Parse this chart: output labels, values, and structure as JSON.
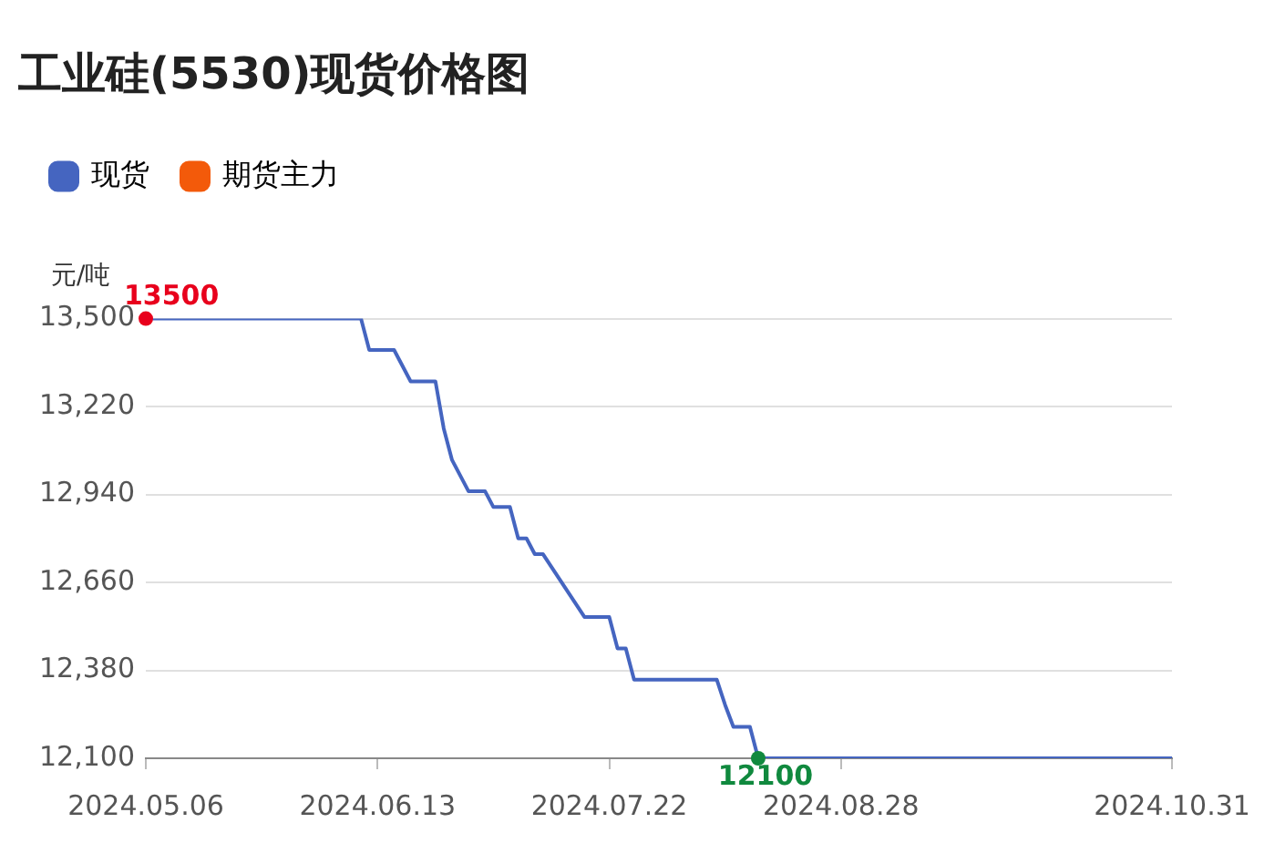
{
  "chart_data": {
    "type": "line",
    "title": "工业硅(5530)现货价格图",
    "ylabel": "元/吨",
    "categories": [
      "2024.05.06",
      null,
      null,
      null,
      null,
      null,
      null,
      null,
      null,
      null,
      null,
      null,
      null,
      null,
      null,
      null,
      null,
      null,
      null,
      null,
      null,
      null,
      null,
      null,
      null,
      null,
      null,
      null,
      "2024.06.13",
      null,
      null,
      null,
      null,
      null,
      null,
      null,
      null,
      null,
      null,
      null,
      null,
      null,
      null,
      null,
      null,
      null,
      null,
      null,
      null,
      null,
      null,
      null,
      null,
      null,
      null,
      null,
      "2024.07.22",
      null,
      null,
      null,
      null,
      null,
      null,
      null,
      null,
      null,
      null,
      null,
      null,
      null,
      null,
      null,
      null,
      null,
      null,
      null,
      null,
      null,
      null,
      null,
      null,
      null,
      null,
      null,
      "2024.08.28",
      null,
      null,
      null,
      null,
      null,
      null,
      null,
      null,
      null,
      null,
      null,
      null,
      null,
      null,
      null,
      null,
      null,
      null,
      null,
      null,
      null,
      null,
      null,
      null,
      null,
      null,
      null,
      null,
      null,
      null,
      null,
      null,
      null,
      null,
      null,
      null,
      null,
      null,
      null,
      "2024.10.31"
    ],
    "series": [
      {
        "name": "现货",
        "color": "#4565c0",
        "values": [
          13500,
          13500,
          13500,
          13500,
          13500,
          13500,
          13500,
          13500,
          13500,
          13500,
          13500,
          13500,
          13500,
          13500,
          13500,
          13500,
          13500,
          13500,
          13500,
          13500,
          13500,
          13500,
          13500,
          13500,
          13500,
          13500,
          13500,
          13400,
          13400,
          13400,
          13400,
          13350,
          13300,
          13300,
          13300,
          13300,
          13150,
          13050,
          13000,
          12950,
          12950,
          12950,
          12900,
          12900,
          12900,
          12800,
          12800,
          12750,
          12750,
          12710,
          12670,
          12630,
          12590,
          12550,
          12550,
          12550,
          12550,
          12450,
          12450,
          12350,
          12350,
          12350,
          12350,
          12350,
          12350,
          12350,
          12350,
          12350,
          12350,
          12350,
          12270,
          12200,
          12200,
          12200,
          12100,
          12100,
          12100,
          12100,
          12100,
          12100,
          12100,
          12100,
          12100,
          12100,
          12100,
          12100,
          12100,
          12100,
          12100,
          12100,
          12100,
          12100,
          12100,
          12100,
          12100,
          12100,
          12100,
          12100,
          12100,
          12100,
          12100,
          12100,
          12100,
          12100,
          12100,
          12100,
          12100,
          12100,
          12100,
          12100,
          12100,
          12100,
          12100,
          12100,
          12100,
          12100,
          12100,
          12100,
          12100,
          12100,
          12100,
          12100,
          12100,
          12100,
          12100
        ],
        "value_labels": [
          "13500",
          null,
          null,
          null,
          null,
          null,
          null,
          null,
          null,
          null,
          null,
          null,
          null,
          null,
          null,
          null,
          null,
          null,
          null,
          null,
          null,
          null,
          null,
          null,
          null,
          null,
          null,
          null,
          null,
          null,
          null,
          null,
          null,
          null,
          null,
          null,
          null,
          null,
          null,
          null,
          null,
          null,
          null,
          null,
          null,
          null,
          null,
          null,
          null,
          null,
          null,
          null,
          null,
          null,
          null,
          null,
          null,
          null,
          null,
          null,
          null,
          null,
          null,
          null,
          null,
          null,
          null,
          null,
          null,
          null,
          null,
          null,
          null,
          null,
          "12100",
          null,
          null,
          null,
          null,
          null,
          null,
          null,
          null,
          null,
          null,
          null,
          null,
          null,
          null,
          null,
          null,
          null,
          null,
          null,
          null,
          null,
          null,
          null,
          null,
          null,
          null,
          null,
          null,
          null,
          null,
          null,
          null,
          null,
          null,
          null,
          null,
          null,
          null,
          null,
          null,
          null,
          null,
          null,
          null,
          null,
          null,
          null,
          null,
          null,
          null
        ]
      },
      {
        "name": "期货主力",
        "color": "#f35a0a",
        "values": [
          null,
          null,
          null,
          null,
          null,
          null,
          null,
          null,
          null,
          null,
          null,
          null,
          null,
          null,
          null,
          null,
          null,
          null,
          null,
          null,
          null,
          null,
          null,
          null,
          null,
          null,
          null,
          null,
          null,
          null,
          null,
          null,
          null,
          null,
          null,
          null,
          null,
          null,
          null,
          null,
          null,
          null,
          null,
          null,
          null,
          null,
          null,
          null,
          null,
          null,
          null,
          null,
          null,
          null,
          null,
          null,
          null,
          null,
          null,
          null,
          null,
          null,
          null,
          null,
          null,
          null,
          null,
          null,
          null,
          null,
          null,
          null,
          null,
          null,
          null,
          null,
          null,
          null,
          null,
          null,
          null,
          null,
          null,
          null,
          null,
          null,
          null,
          null,
          null,
          null,
          null,
          null,
          null,
          null,
          null,
          null,
          null,
          null,
          null,
          null,
          null,
          null,
          null,
          null,
          null,
          null,
          null,
          null,
          null,
          null,
          null,
          null,
          null,
          null,
          null,
          null,
          null,
          null,
          null,
          null,
          null,
          null,
          null,
          null,
          null
        ]
      }
    ],
    "ylim": [
      12100,
      13500
    ],
    "yticks": [
      {
        "value": 12100,
        "label": "12,100"
      },
      {
        "value": 12380,
        "label": "12,380"
      },
      {
        "value": 12660,
        "label": "12,660"
      },
      {
        "value": 12940,
        "label": "12,940"
      },
      {
        "value": 13220,
        "label": "13,220"
      },
      {
        "value": 13500,
        "label": "13,500"
      }
    ],
    "grid": "y",
    "legend": "top left",
    "marker": "none"
  }
}
